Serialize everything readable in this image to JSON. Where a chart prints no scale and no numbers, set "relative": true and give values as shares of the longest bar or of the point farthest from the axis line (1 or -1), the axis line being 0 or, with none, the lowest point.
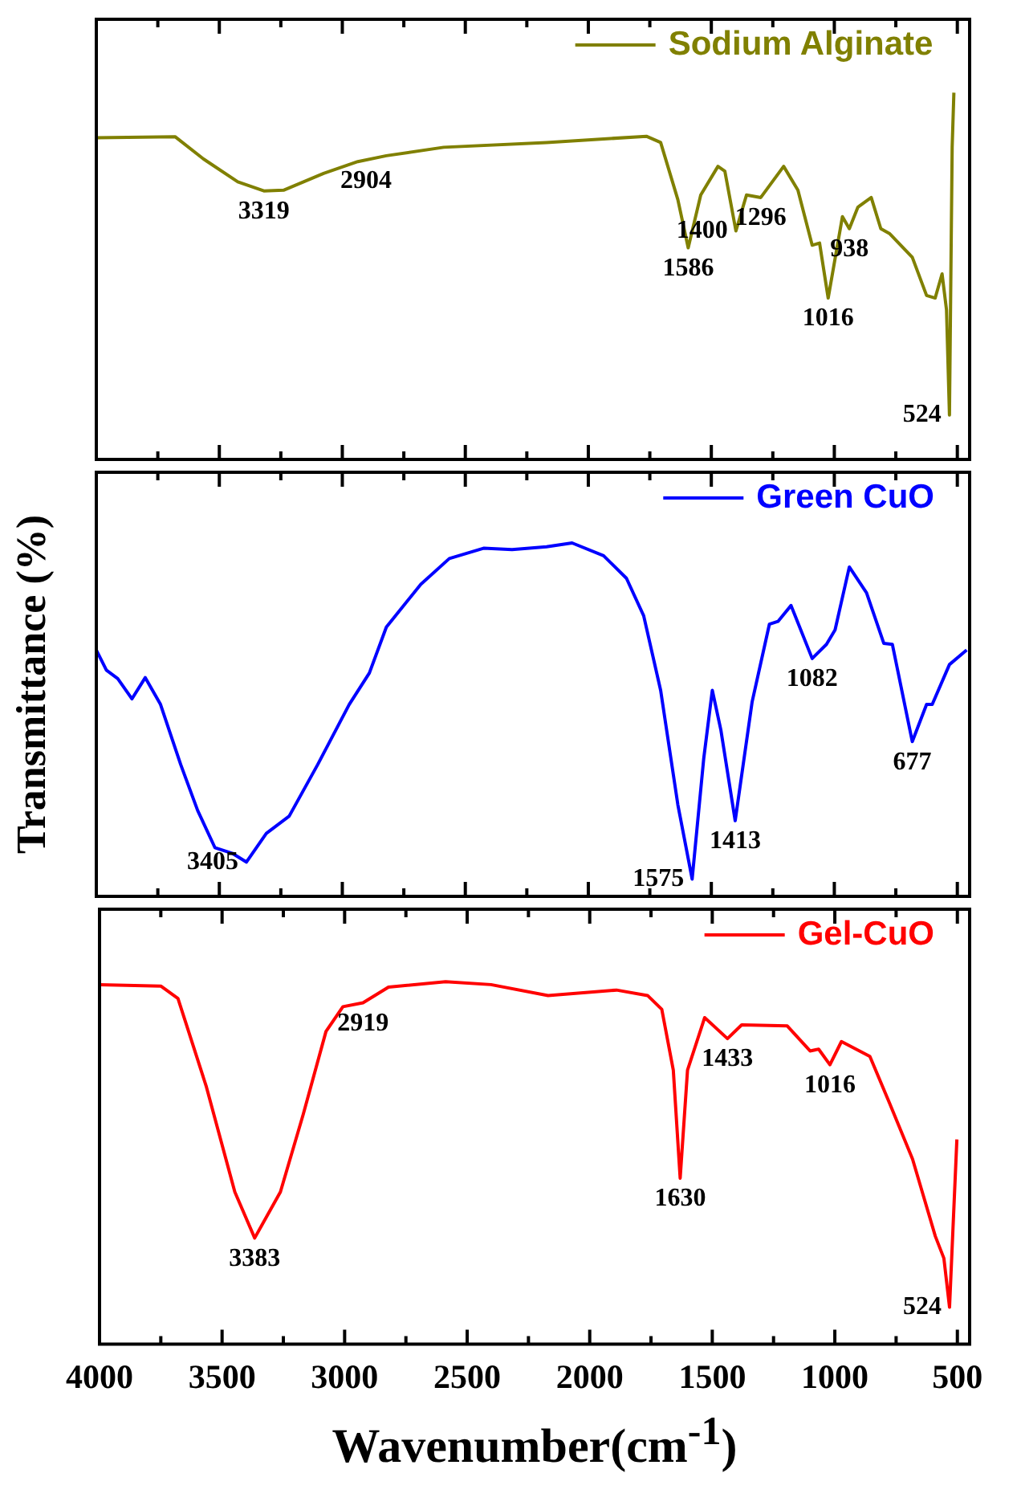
{
  "chart_data": [
    {
      "type": "line",
      "xlim": [
        4000,
        450
      ],
      "xticks": [
        4000,
        {
          "value": 3750,
          "label": null
        },
        3500,
        {
          "value": 3250,
          "label": null
        },
        3000,
        {
          "value": 2750,
          "label": null
        },
        2500,
        {
          "value": 2250,
          "label": null
        },
        2000,
        {
          "value": 1750,
          "label": null
        },
        1500,
        {
          "value": 1250,
          "label": null
        },
        1000,
        {
          "value": 750,
          "label": null
        },
        500
      ],
      "tick_labels": false,
      "relative": true,
      "grid": false,
      "legend": "top right",
      "marker": "none",
      "line_style": "solid",
      "series": [
        {
          "name": "Sodium Alginate",
          "color": "#808000",
          "x": [
            4000,
            3680,
            3564,
            3425,
            3319,
            3239,
            3076,
            2937,
            2821,
            2588,
            2170,
            1764,
            1706,
            1636,
            1594,
            1543,
            1473,
            1445,
            1400,
            1357,
            1299,
            1206,
            1148,
            1090,
            1060,
            1025,
            967,
            939,
            904,
            850,
            811,
            776,
            683,
            625,
            590,
            562,
            544,
            532,
            521,
            514
          ],
          "values": [
            0.877,
            0.88,
            0.819,
            0.757,
            0.732,
            0.734,
            0.78,
            0.812,
            0.828,
            0.851,
            0.864,
            0.881,
            0.864,
            0.708,
            0.577,
            0.721,
            0.799,
            0.786,
            0.623,
            0.721,
            0.714,
            0.799,
            0.734,
            0.584,
            0.59,
            0.44,
            0.662,
            0.629,
            0.688,
            0.714,
            0.629,
            0.616,
            0.551,
            0.447,
            0.44,
            0.506,
            0.408,
            0.121,
            0.851,
            1.0
          ]
        }
      ],
      "annotations": [
        {
          "text": "3319",
          "x": 3319,
          "y": 0.732
        },
        {
          "text": "2904",
          "x": 2904,
          "y": 0.815
        },
        {
          "text": "1586",
          "x": 1594,
          "y": 0.577
        },
        {
          "text": "1400",
          "x": 1400,
          "y": 0.623
        },
        {
          "text": "1296",
          "x": 1299,
          "y": 0.714
        },
        {
          "text": "1016",
          "x": 1025,
          "y": 0.44
        },
        {
          "text": "938",
          "x": 939,
          "y": 0.629
        },
        {
          "text": "524",
          "x": 532,
          "y": 0.121
        }
      ]
    },
    {
      "type": "line",
      "ylabel": "Transmittance (%)",
      "xlim": [
        4000,
        450
      ],
      "xticks": [
        4000,
        {
          "value": 3750,
          "label": null
        },
        3500,
        {
          "value": 3250,
          "label": null
        },
        3000,
        {
          "value": 2750,
          "label": null
        },
        2500,
        {
          "value": 2250,
          "label": null
        },
        2000,
        {
          "value": 1750,
          "label": null
        },
        1500,
        {
          "value": 1250,
          "label": null
        },
        1000,
        {
          "value": 750,
          "label": null
        },
        500
      ],
      "tick_labels": false,
      "relative": true,
      "grid": false,
      "legend": "top right",
      "marker": "none",
      "line_style": "solid",
      "series": [
        {
          "name": "Green CuO",
          "color": "#0000ff",
          "x": [
            4000,
            3959,
            3913,
            3855,
            3801,
            3739,
            3657,
            3588,
            3518,
            3448,
            3390,
            3309,
            3216,
            3100,
            2972,
            2890,
            2821,
            2681,
            2565,
            2426,
            2310,
            2170,
            2066,
            1938,
            1845,
            1775,
            1706,
            1636,
            1578,
            1531,
            1496,
            1461,
            1403,
            1334,
            1264,
            1229,
            1176,
            1090,
            1032,
            997,
            939,
            869,
            799,
            764,
            683,
            625,
            602,
            532,
            462
          ],
          "values": [
            0.697,
            0.64,
            0.616,
            0.559,
            0.619,
            0.543,
            0.373,
            0.243,
            0.138,
            0.122,
            0.097,
            0.178,
            0.227,
            0.373,
            0.543,
            0.632,
            0.762,
            0.883,
            0.956,
            0.985,
            0.981,
            0.989,
            1.0,
            0.964,
            0.9,
            0.794,
            0.583,
            0.259,
            0.049,
            0.389,
            0.583,
            0.47,
            0.214,
            0.551,
            0.77,
            0.778,
            0.823,
            0.673,
            0.713,
            0.754,
            0.932,
            0.859,
            0.716,
            0.713,
            0.438,
            0.543,
            0.543,
            0.656,
            0.697
          ]
        }
      ],
      "annotations": [
        {
          "text": "3405",
          "x": 3390,
          "y": 0.097
        },
        {
          "text": "1575",
          "x": 1578,
          "y": 0.049
        },
        {
          "text": "1413",
          "x": 1403,
          "y": 0.214
        },
        {
          "text": "1082",
          "x": 1090,
          "y": 0.673
        },
        {
          "text": "677",
          "x": 683,
          "y": 0.438
        }
      ]
    },
    {
      "type": "line",
      "xlabel": "Wavenumber(cm$^{-1}$)",
      "xlim": [
        4000,
        450
      ],
      "xticks": [
        4000,
        {
          "value": 3750,
          "label": null
        },
        3500,
        {
          "value": 3250,
          "label": null
        },
        3000,
        {
          "value": 2750,
          "label": null
        },
        2500,
        {
          "value": 2250,
          "label": null
        },
        2000,
        {
          "value": 1750,
          "label": null
        },
        1500,
        {
          "value": 1250,
          "label": null
        },
        1000,
        {
          "value": 750,
          "label": null
        },
        500
      ],
      "tick_labels": "x",
      "relative": true,
      "grid": false,
      "legend": "top right",
      "marker": "none",
      "line_style": "solid",
      "series": [
        {
          "name": "Gel-CuO",
          "color": "#ff0000",
          "x": [
            4000,
            3750,
            3680,
            3564,
            3448,
            3367,
            3262,
            3169,
            3076,
            3007,
            2925,
            2821,
            2588,
            2403,
            2170,
            1891,
            1764,
            1706,
            1659,
            1631,
            1601,
            1531,
            1438,
            1380,
            1194,
            1101,
            1066,
            1020,
            973,
            857,
            776,
            683,
            590,
            555,
            532,
            502
          ],
          "values": [
            0.992,
            0.988,
            0.954,
            0.71,
            0.42,
            0.293,
            0.42,
            0.634,
            0.863,
            0.931,
            0.942,
            0.985,
            1.0,
            0.992,
            0.962,
            0.977,
            0.962,
            0.924,
            0.756,
            0.458,
            0.756,
            0.901,
            0.843,
            0.881,
            0.878,
            0.809,
            0.814,
            0.771,
            0.835,
            0.794,
            0.664,
            0.511,
            0.298,
            0.237,
            0.102,
            0.565
          ]
        }
      ],
      "annotations": [
        {
          "text": "3383",
          "x": 3367,
          "y": 0.293
        },
        {
          "text": "2919",
          "x": 2925,
          "y": 0.942
        },
        {
          "text": "1630",
          "x": 1631,
          "y": 0.458
        },
        {
          "text": "1433",
          "x": 1438,
          "y": 0.843
        },
        {
          "text": "1016",
          "x": 1020,
          "y": 0.771
        },
        {
          "text": "524",
          "x": 532,
          "y": 0.102
        }
      ]
    }
  ]
}
